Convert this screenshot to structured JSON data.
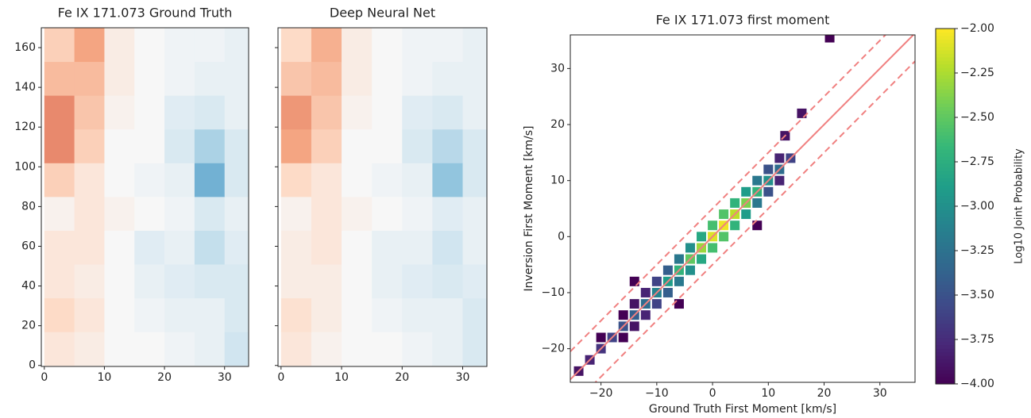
{
  "chart_data": [
    {
      "type": "heatmap",
      "title": "Fe IX 171.073 Ground Truth",
      "xbins": [
        0,
        5,
        10,
        15,
        20,
        25,
        30,
        35
      ],
      "ybins": [
        0,
        17,
        34,
        51,
        68,
        85,
        102,
        119,
        136,
        153,
        170
      ],
      "z": [
        [
          0.15,
          0.1,
          0,
          0,
          -0.05,
          -0.1,
          -0.25
        ],
        [
          0.25,
          0.15,
          0,
          -0.05,
          -0.1,
          -0.1,
          -0.2
        ],
        [
          0.15,
          0.1,
          0,
          -0.1,
          -0.15,
          -0.2,
          -0.2
        ],
        [
          0.15,
          0.15,
          0,
          -0.15,
          -0.1,
          -0.3,
          -0.15
        ],
        [
          0.05,
          0.15,
          0.05,
          0,
          -0.05,
          -0.2,
          -0.1
        ],
        [
          0.3,
          0.15,
          0,
          -0.05,
          -0.1,
          -0.6,
          -0.2
        ],
        [
          0.6,
          0.3,
          0,
          0,
          -0.2,
          -0.4,
          -0.2
        ],
        [
          0.6,
          0.35,
          0.05,
          0,
          -0.15,
          -0.2,
          -0.1
        ],
        [
          0.4,
          0.4,
          0.1,
          0,
          -0.05,
          -0.1,
          -0.1
        ],
        [
          0.3,
          0.5,
          0.1,
          0,
          -0.05,
          -0.05,
          -0.1
        ]
      ],
      "zlim": [
        -1,
        1
      ],
      "colormap": "RdBu_r",
      "xlim": [
        -0.5,
        34
      ],
      "ylim": [
        -0.5,
        170
      ],
      "xticks": [
        0,
        10,
        20,
        30
      ],
      "yticks": [
        0,
        20,
        40,
        60,
        80,
        100,
        120,
        140,
        160
      ],
      "show_ytick_labels": true
    },
    {
      "type": "heatmap",
      "title": "Deep Neural Net",
      "xbins": [
        0,
        5,
        10,
        15,
        20,
        25,
        30,
        35
      ],
      "ybins": [
        0,
        17,
        34,
        51,
        68,
        85,
        102,
        119,
        136,
        153,
        170
      ],
      "z": [
        [
          0.15,
          0.05,
          0,
          0,
          -0.05,
          -0.1,
          -0.2
        ],
        [
          0.2,
          0.1,
          0,
          -0.05,
          -0.1,
          -0.1,
          -0.2
        ],
        [
          0.1,
          0.1,
          0,
          -0.1,
          -0.15,
          -0.2,
          -0.15
        ],
        [
          0.1,
          0.15,
          0,
          -0.1,
          -0.1,
          -0.25,
          -0.1
        ],
        [
          0.05,
          0.15,
          0.05,
          0,
          -0.05,
          -0.15,
          -0.1
        ],
        [
          0.25,
          0.15,
          0,
          -0.05,
          -0.1,
          -0.5,
          -0.2
        ],
        [
          0.5,
          0.3,
          0,
          0,
          -0.2,
          -0.35,
          -0.2
        ],
        [
          0.55,
          0.35,
          0.05,
          0,
          -0.15,
          -0.2,
          -0.1
        ],
        [
          0.35,
          0.4,
          0.1,
          0,
          -0.05,
          -0.1,
          -0.1
        ],
        [
          0.25,
          0.45,
          0.1,
          0,
          -0.05,
          -0.05,
          -0.1
        ]
      ],
      "zlim": [
        -1,
        1
      ],
      "colormap": "RdBu_r",
      "xlim": [
        -0.5,
        34
      ],
      "ylim": [
        -0.5,
        170
      ],
      "xticks": [
        0,
        10,
        20,
        30
      ],
      "yticks": [
        0,
        20,
        40,
        60,
        80,
        100,
        120,
        140,
        160
      ],
      "show_ytick_labels": false
    },
    {
      "type": "hist2d",
      "title": "Fe IX 171.073 first moment",
      "x_label": "Ground Truth First Moment [km/s]",
      "y_label": "Inversion First Moment [km/s]",
      "x": [
        -24,
        -22,
        -20,
        -18,
        -16,
        -14,
        -12,
        -10,
        -8,
        -6,
        -4,
        -2,
        0,
        2,
        4,
        6,
        8,
        10,
        12,
        14,
        -16,
        -14,
        -12,
        -10,
        -8,
        -6,
        -4,
        -2,
        0,
        2,
        4,
        6,
        8,
        10,
        12,
        -16,
        -14,
        -12,
        -10,
        -8,
        -6,
        -4,
        -2,
        0,
        2,
        4,
        6,
        8,
        10,
        12,
        21,
        13,
        -20,
        -14,
        16,
        -6,
        8
      ],
      "y": [
        -24,
        -22,
        -20,
        -18,
        -16,
        -14,
        -12,
        -10,
        -8,
        -6,
        -4,
        -2,
        0,
        2,
        4,
        6,
        8,
        10,
        12,
        14,
        -14,
        -12,
        -10,
        -8,
        -6,
        -4,
        -2,
        0,
        2,
        4,
        6,
        8,
        10,
        12,
        14,
        -18,
        -16,
        -14,
        -12,
        -10,
        -8,
        -6,
        -4,
        -2,
        0,
        2,
        4,
        6,
        8,
        10,
        35.5,
        18,
        -18,
        -8,
        22,
        -12,
        2
      ],
      "values": [
        -3.9,
        -3.8,
        -3.7,
        -3.6,
        -3.5,
        -3.4,
        -3.3,
        -3.1,
        -2.9,
        -2.7,
        -2.5,
        -2.3,
        -2.1,
        -2.05,
        -2.2,
        -2.4,
        -2.7,
        -3.0,
        -3.3,
        -3.6,
        -4.0,
        -3.9,
        -3.8,
        -3.6,
        -3.4,
        -3.2,
        -3.0,
        -2.8,
        -2.6,
        -2.55,
        -2.7,
        -2.9,
        -3.2,
        -3.5,
        -3.8,
        -4.0,
        -3.9,
        -3.8,
        -3.6,
        -3.4,
        -3.2,
        -3.0,
        -2.8,
        -2.6,
        -2.55,
        -2.7,
        -2.9,
        -3.2,
        -3.5,
        -3.8,
        -4.0,
        -3.9,
        -4.0,
        -4.0,
        -3.9,
        -4.0,
        -4.0
      ],
      "colormap": "viridis",
      "reference_lines": [
        {
          "offset": 0,
          "style": "solid"
        },
        {
          "offset": 5,
          "style": "dashed"
        },
        {
          "offset": -5,
          "style": "dashed"
        }
      ],
      "line_color": "#f08080",
      "xlim": [
        -25.5,
        36.3
      ],
      "ylim": [
        -26,
        36
      ],
      "xticks": [
        {
          "value": -20,
          "label": "−20"
        },
        {
          "value": -10,
          "label": "−10"
        },
        0,
        10,
        20,
        30
      ],
      "yticks": [
        {
          "value": -20,
          "label": "−20"
        },
        {
          "value": -10,
          "label": "−10"
        },
        0,
        10,
        20,
        30
      ],
      "colorbar": {
        "label": "Log10 Joint Probability",
        "lim": [
          -4,
          -2
        ],
        "ticks": [
          {
            "value": -4,
            "label": "−4.00"
          },
          {
            "value": -3.75,
            "label": "−3.75"
          },
          {
            "value": -3.5,
            "label": "−3.50"
          },
          {
            "value": -3.25,
            "label": "−3.25"
          },
          {
            "value": -3,
            "label": "−3.00"
          },
          {
            "value": -2.75,
            "label": "−2.75"
          },
          {
            "value": -2.5,
            "label": "−2.50"
          },
          {
            "value": -2.25,
            "label": "−2.25"
          },
          {
            "value": -2,
            "label": "−2.00"
          }
        ]
      }
    }
  ]
}
